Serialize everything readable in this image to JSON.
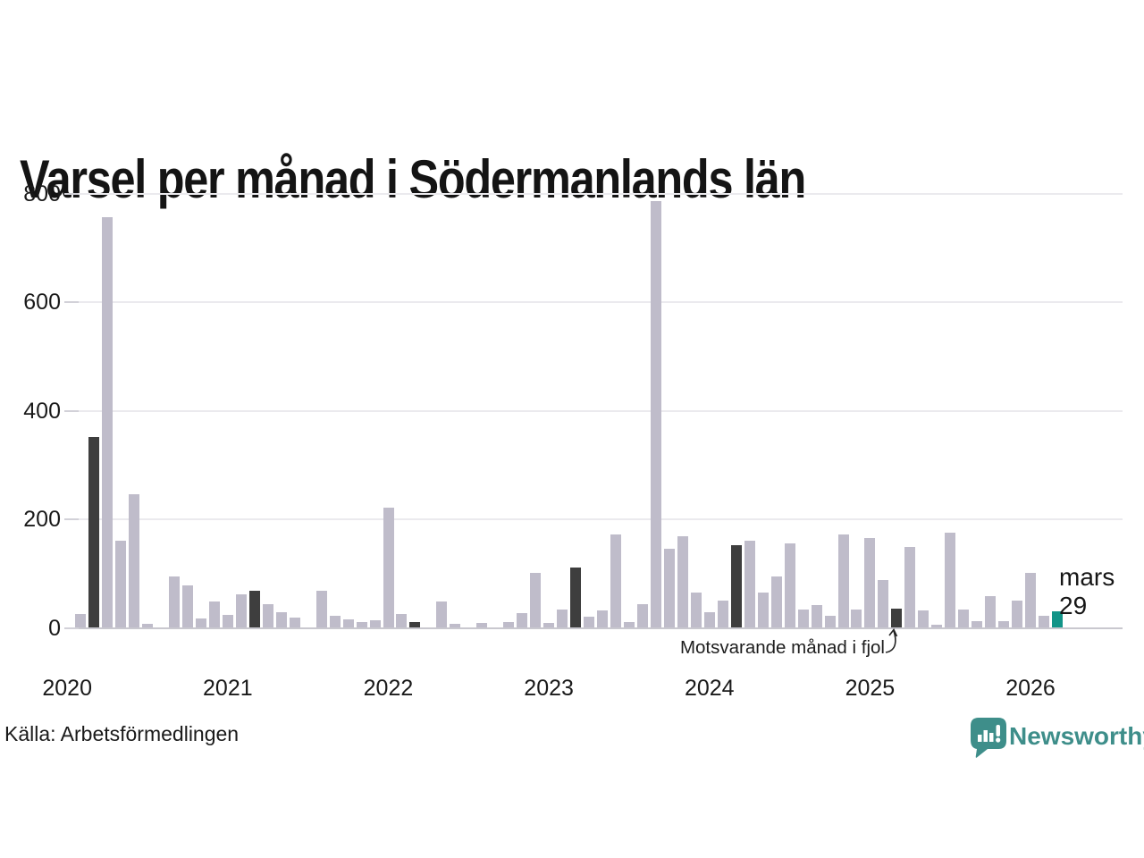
{
  "title": "Varsel per månad i Södermanlands län",
  "source": "Källa: Arbetsförmedlingen",
  "branding": {
    "logo_text": "Newsworthy",
    "logo_icon": "speech-bubble-bar-chart-icon",
    "logo_color": "#3e8e8a"
  },
  "annotation": {
    "text": "Motsvarande månad i fjol",
    "points_to": "2025-03"
  },
  "current_point_label": {
    "month": "mars",
    "value": "29"
  },
  "colors": {
    "bar_normal": "#bfbcca",
    "bar_same_month_last_years": "#3e3e3e",
    "bar_current": "#129488",
    "gridline": "#ebeaee",
    "axis_line": "#c9c8cf",
    "text": "#1a1a1a"
  },
  "chart_data": {
    "type": "bar",
    "title": "Varsel per månad i Södermanlands län",
    "xlabel": "",
    "ylabel": "",
    "ylim": [
      0,
      800
    ],
    "yticks": [
      0,
      200,
      400,
      600,
      800
    ],
    "grid": "horizontal",
    "legend_position": "none",
    "x_year_labels": [
      "2020",
      "2021",
      "2022",
      "2023",
      "2024",
      "2025",
      "2026"
    ],
    "highlight_rule": "March of each year dark; March 2026 teal (current month)",
    "months": [
      {
        "m": "2020-01",
        "v": 0,
        "k": "normal"
      },
      {
        "m": "2020-02",
        "v": 25,
        "k": "normal"
      },
      {
        "m": "2020-03",
        "v": 350,
        "k": "dark"
      },
      {
        "m": "2020-04",
        "v": 755,
        "k": "normal"
      },
      {
        "m": "2020-05",
        "v": 160,
        "k": "normal"
      },
      {
        "m": "2020-06",
        "v": 245,
        "k": "normal"
      },
      {
        "m": "2020-07",
        "v": 7,
        "k": "normal"
      },
      {
        "m": "2020-08",
        "v": 0,
        "k": "normal"
      },
      {
        "m": "2020-09",
        "v": 94,
        "k": "normal"
      },
      {
        "m": "2020-10",
        "v": 77,
        "k": "normal"
      },
      {
        "m": "2020-11",
        "v": 16,
        "k": "normal"
      },
      {
        "m": "2020-12",
        "v": 48,
        "k": "normal"
      },
      {
        "m": "2021-01",
        "v": 23,
        "k": "normal"
      },
      {
        "m": "2021-02",
        "v": 61,
        "k": "normal"
      },
      {
        "m": "2021-03",
        "v": 67,
        "k": "dark"
      },
      {
        "m": "2021-04",
        "v": 43,
        "k": "normal"
      },
      {
        "m": "2021-05",
        "v": 28,
        "k": "normal"
      },
      {
        "m": "2021-06",
        "v": 18,
        "k": "normal"
      },
      {
        "m": "2021-07",
        "v": 0,
        "k": "normal"
      },
      {
        "m": "2021-08",
        "v": 67,
        "k": "normal"
      },
      {
        "m": "2021-09",
        "v": 21,
        "k": "normal"
      },
      {
        "m": "2021-10",
        "v": 15,
        "k": "normal"
      },
      {
        "m": "2021-11",
        "v": 10,
        "k": "normal"
      },
      {
        "m": "2021-12",
        "v": 13,
        "k": "normal"
      },
      {
        "m": "2022-01",
        "v": 220,
        "k": "normal"
      },
      {
        "m": "2022-02",
        "v": 25,
        "k": "normal"
      },
      {
        "m": "2022-03",
        "v": 10,
        "k": "dark"
      },
      {
        "m": "2022-04",
        "v": 0,
        "k": "normal"
      },
      {
        "m": "2022-05",
        "v": 48,
        "k": "normal"
      },
      {
        "m": "2022-06",
        "v": 7,
        "k": "normal"
      },
      {
        "m": "2022-07",
        "v": 0,
        "k": "normal"
      },
      {
        "m": "2022-08",
        "v": 8,
        "k": "normal"
      },
      {
        "m": "2022-09",
        "v": 0,
        "k": "normal"
      },
      {
        "m": "2022-10",
        "v": 10,
        "k": "normal"
      },
      {
        "m": "2022-11",
        "v": 26,
        "k": "normal"
      },
      {
        "m": "2022-12",
        "v": 100,
        "k": "normal"
      },
      {
        "m": "2023-01",
        "v": 8,
        "k": "normal"
      },
      {
        "m": "2023-02",
        "v": 33,
        "k": "normal"
      },
      {
        "m": "2023-03",
        "v": 110,
        "k": "dark"
      },
      {
        "m": "2023-04",
        "v": 20,
        "k": "normal"
      },
      {
        "m": "2023-05",
        "v": 31,
        "k": "normal"
      },
      {
        "m": "2023-06",
        "v": 171,
        "k": "normal"
      },
      {
        "m": "2023-07",
        "v": 10,
        "k": "normal"
      },
      {
        "m": "2023-08",
        "v": 43,
        "k": "normal"
      },
      {
        "m": "2023-09",
        "v": 785,
        "k": "normal"
      },
      {
        "m": "2023-10",
        "v": 145,
        "k": "normal"
      },
      {
        "m": "2023-11",
        "v": 168,
        "k": "normal"
      },
      {
        "m": "2023-12",
        "v": 64,
        "k": "normal"
      },
      {
        "m": "2024-01",
        "v": 28,
        "k": "normal"
      },
      {
        "m": "2024-02",
        "v": 49,
        "k": "normal"
      },
      {
        "m": "2024-03",
        "v": 152,
        "k": "dark"
      },
      {
        "m": "2024-04",
        "v": 159,
        "k": "normal"
      },
      {
        "m": "2024-05",
        "v": 64,
        "k": "normal"
      },
      {
        "m": "2024-06",
        "v": 94,
        "k": "normal"
      },
      {
        "m": "2024-07",
        "v": 155,
        "k": "normal"
      },
      {
        "m": "2024-08",
        "v": 33,
        "k": "normal"
      },
      {
        "m": "2024-09",
        "v": 41,
        "k": "normal"
      },
      {
        "m": "2024-10",
        "v": 21,
        "k": "normal"
      },
      {
        "m": "2024-11",
        "v": 171,
        "k": "normal"
      },
      {
        "m": "2024-12",
        "v": 33,
        "k": "normal"
      },
      {
        "m": "2025-01",
        "v": 164,
        "k": "normal"
      },
      {
        "m": "2025-02",
        "v": 87,
        "k": "normal"
      },
      {
        "m": "2025-03",
        "v": 35,
        "k": "dark"
      },
      {
        "m": "2025-04",
        "v": 148,
        "k": "normal"
      },
      {
        "m": "2025-05",
        "v": 31,
        "k": "normal"
      },
      {
        "m": "2025-06",
        "v": 5,
        "k": "normal"
      },
      {
        "m": "2025-07",
        "v": 174,
        "k": "normal"
      },
      {
        "m": "2025-08",
        "v": 33,
        "k": "normal"
      },
      {
        "m": "2025-09",
        "v": 12,
        "k": "normal"
      },
      {
        "m": "2025-10",
        "v": 58,
        "k": "normal"
      },
      {
        "m": "2025-11",
        "v": 12,
        "k": "normal"
      },
      {
        "m": "2025-12",
        "v": 49,
        "k": "normal"
      },
      {
        "m": "2026-01",
        "v": 100,
        "k": "normal"
      },
      {
        "m": "2026-02",
        "v": 21,
        "k": "normal"
      },
      {
        "m": "2026-03",
        "v": 29,
        "k": "current"
      }
    ]
  }
}
